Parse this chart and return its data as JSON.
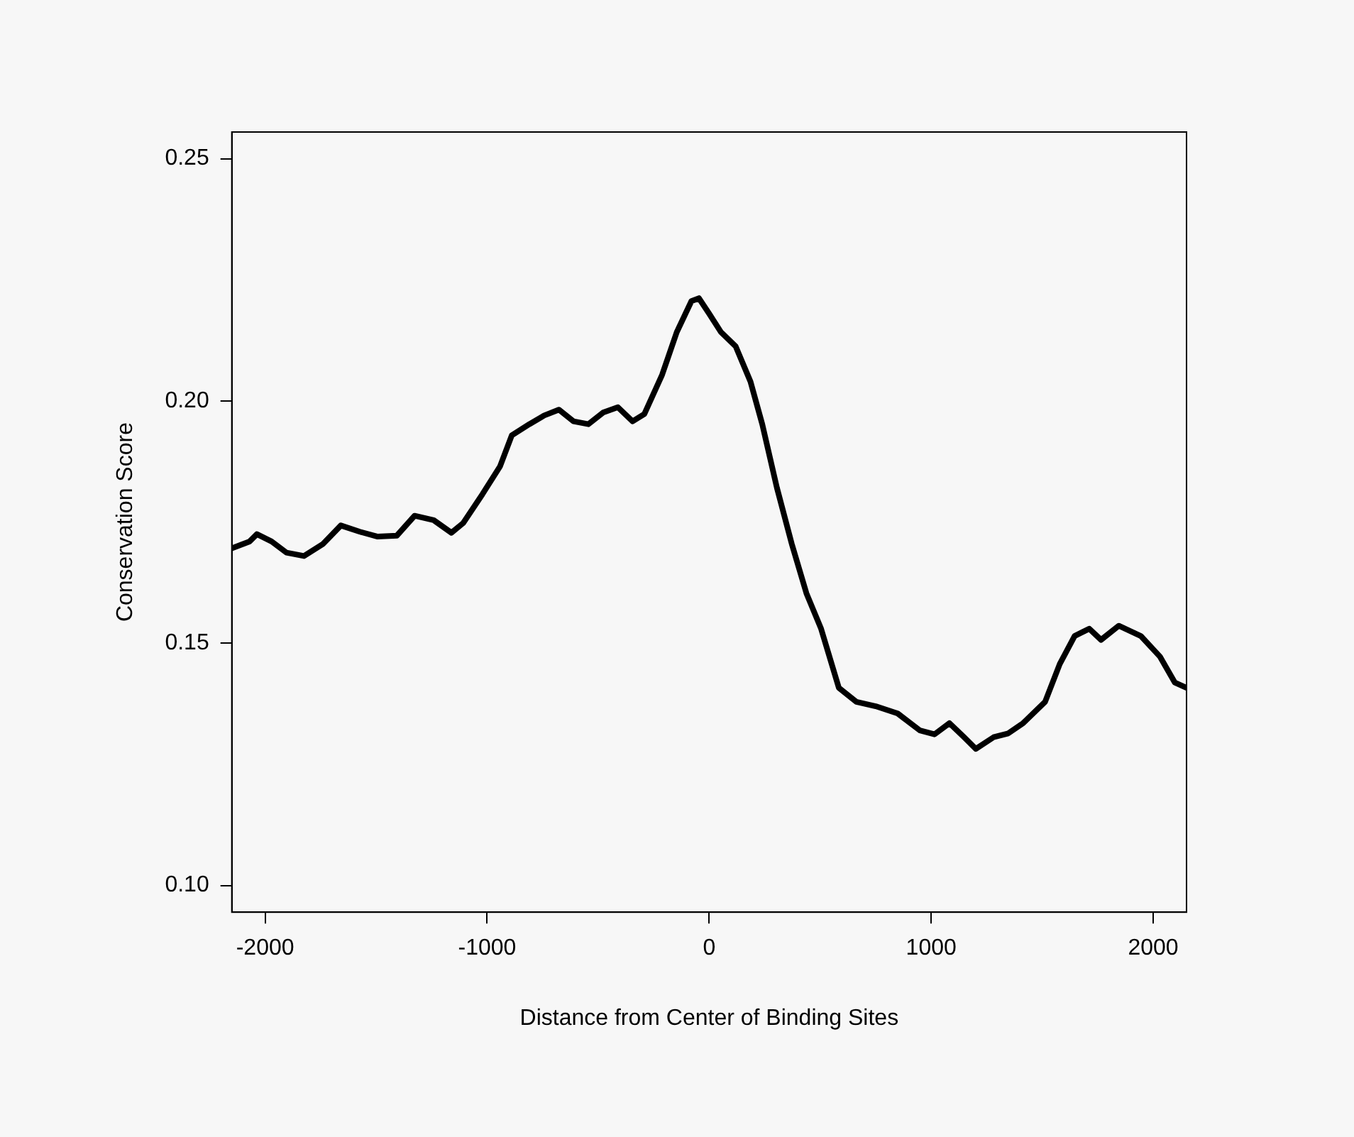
{
  "chart_data": {
    "type": "line",
    "xlabel": "Distance from Center of Binding Sites",
    "ylabel": "Conservation Score",
    "xlim": [
      -2150,
      2150
    ],
    "xticks": [
      -2000,
      -1000,
      0,
      1000,
      2000
    ],
    "ylim": [
      0.0945,
      0.2555
    ],
    "yticks": [
      {
        "value": 0.1,
        "label": "0.10"
      },
      {
        "value": 0.15,
        "label": "0.15"
      },
      {
        "value": 0.2,
        "label": "0.20"
      },
      {
        "value": 0.25,
        "label": "0.25"
      }
    ],
    "grid": false,
    "legend": false,
    "marker": "none",
    "line_style": "solid",
    "series": [
      {
        "color": "#000000",
        "x": [
          -2150,
          -2070,
          -2037,
          -1971,
          -1904,
          -1825,
          -1739,
          -1659,
          -1573,
          -1493,
          -1407,
          -1327,
          -1241,
          -1161,
          -1108,
          -1022,
          -942,
          -889,
          -810,
          -743,
          -677,
          -611,
          -544,
          -478,
          -411,
          -345,
          -292,
          -212,
          -146,
          -80,
          -46,
          0,
          53,
          119,
          186,
          239,
          305,
          372,
          438,
          504,
          584,
          663,
          750,
          849,
          949,
          1015,
          1082,
          1148,
          1201,
          1281,
          1347,
          1414,
          1513,
          1579,
          1646,
          1712,
          1765,
          1845,
          1944,
          2031,
          2097,
          2150
        ],
        "values": [
          0.1696,
          0.171,
          0.1725,
          0.171,
          0.1687,
          0.168,
          0.1705,
          0.1743,
          0.173,
          0.172,
          0.1722,
          0.1763,
          0.1754,
          0.1728,
          0.1748,
          0.1807,
          0.1865,
          0.1929,
          0.1952,
          0.197,
          0.1982,
          0.1958,
          0.1952,
          0.1976,
          0.1987,
          0.1958,
          0.1973,
          0.2054,
          0.2142,
          0.2206,
          0.2212,
          0.218,
          0.2142,
          0.2113,
          0.204,
          0.1952,
          0.1821,
          0.1705,
          0.1603,
          0.153,
          0.1408,
          0.1379,
          0.137,
          0.1355,
          0.132,
          0.1312,
          0.1335,
          0.1306,
          0.1282,
          0.1306,
          0.1314,
          0.1335,
          0.1379,
          0.1457,
          0.1515,
          0.153,
          0.1507,
          0.1536,
          0.1515,
          0.1472,
          0.1419,
          0.1408
        ]
      }
    ]
  }
}
